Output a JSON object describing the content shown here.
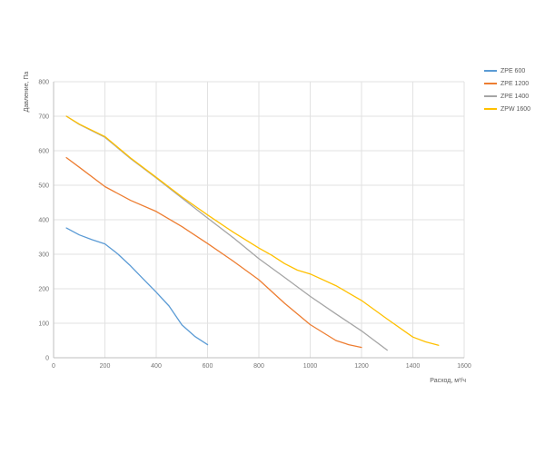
{
  "colors": {
    "background": "#FFFFFF",
    "grid": "#E2E2E2",
    "axis": "#BFBFBF",
    "tick_text": "#737373",
    "title_text": "#595959"
  },
  "chart_data": {
    "type": "line",
    "title": "",
    "xlabel": "Расход, м³/ч",
    "ylabel": "Давление, Па",
    "xlim": [
      0,
      1600
    ],
    "ylim": [
      0,
      800
    ],
    "x_ticks": [
      0,
      200,
      400,
      600,
      800,
      1000,
      1200,
      1400,
      1600
    ],
    "y_ticks": [
      0,
      100,
      200,
      300,
      400,
      500,
      600,
      700,
      800
    ],
    "grid": true,
    "legend_position": "right",
    "series": [
      {
        "name": "ZPE 600",
        "color": "#5B9BD5",
        "points": [
          [
            50,
            376
          ],
          [
            100,
            356
          ],
          [
            150,
            342
          ],
          [
            200,
            330
          ],
          [
            250,
            301
          ],
          [
            300,
            266
          ],
          [
            350,
            228
          ],
          [
            400,
            190
          ],
          [
            450,
            150
          ],
          [
            500,
            95
          ],
          [
            550,
            62
          ],
          [
            600,
            38
          ]
        ]
      },
      {
        "name": "ZPE 1200",
        "color": "#ED7D31",
        "points": [
          [
            50,
            580
          ],
          [
            100,
            552
          ],
          [
            200,
            496
          ],
          [
            300,
            456
          ],
          [
            400,
            424
          ],
          [
            500,
            380
          ],
          [
            600,
            331
          ],
          [
            700,
            280
          ],
          [
            800,
            226
          ],
          [
            900,
            158
          ],
          [
            1000,
            96
          ],
          [
            1100,
            50
          ],
          [
            1150,
            38
          ],
          [
            1200,
            30
          ]
        ]
      },
      {
        "name": "ZPE 1400",
        "color": "#A5A5A5",
        "points": [
          [
            50,
            700
          ],
          [
            100,
            676
          ],
          [
            200,
            639
          ],
          [
            300,
            577
          ],
          [
            400,
            521
          ],
          [
            500,
            463
          ],
          [
            600,
            405
          ],
          [
            700,
            348
          ],
          [
            800,
            287
          ],
          [
            900,
            233
          ],
          [
            1000,
            178
          ],
          [
            1100,
            127
          ],
          [
            1200,
            78
          ],
          [
            1250,
            50
          ],
          [
            1300,
            22
          ]
        ]
      },
      {
        "name": "ZPW 1600",
        "color": "#FFC000",
        "points": [
          [
            50,
            700
          ],
          [
            100,
            677
          ],
          [
            200,
            641
          ],
          [
            300,
            579
          ],
          [
            400,
            523
          ],
          [
            500,
            466
          ],
          [
            600,
            414
          ],
          [
            700,
            364
          ],
          [
            800,
            318
          ],
          [
            850,
            297
          ],
          [
            900,
            273
          ],
          [
            950,
            254
          ],
          [
            1000,
            243
          ],
          [
            1100,
            209
          ],
          [
            1200,
            166
          ],
          [
            1300,
            112
          ],
          [
            1400,
            60
          ],
          [
            1450,
            46
          ],
          [
            1500,
            36
          ]
        ]
      }
    ]
  }
}
